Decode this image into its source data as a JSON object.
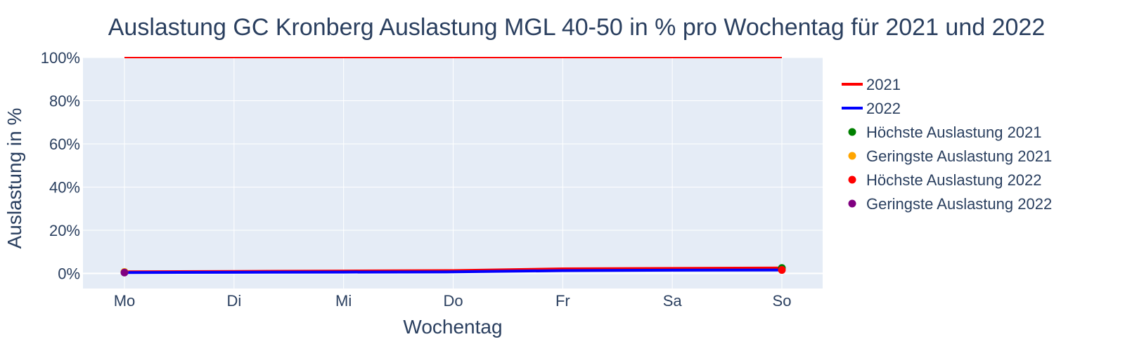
{
  "chart_data": {
    "type": "line",
    "title": "Auslastung GC Kronberg Auslastung MGL 40-50 in % pro Wochentag für 2021 und 2022",
    "xlabel": "Wochentag",
    "ylabel": "Auslastung in %",
    "categories": [
      "Mo",
      "Di",
      "Mi",
      "Do",
      "Fr",
      "Sa",
      "So"
    ],
    "ylim": [
      -7,
      100
    ],
    "yticks": [
      0,
      20,
      40,
      60,
      80,
      100
    ],
    "ytick_labels": [
      "0%",
      "20%",
      "40%",
      "60%",
      "80%",
      "100%"
    ],
    "grid": true,
    "legend_position": "right",
    "series": [
      {
        "name": "2021",
        "mode": "lines",
        "color": "#ff0000",
        "values": [
          0.7,
          0.9,
          1.1,
          1.3,
          2.1,
          2.3,
          2.5
        ]
      },
      {
        "name": "2022",
        "mode": "lines",
        "color": "#0000ff",
        "values": [
          0.4,
          0.5,
          0.6,
          0.7,
          1.3,
          1.5,
          1.6
        ]
      }
    ],
    "markers": [
      {
        "name": "Höchste Auslastung 2021",
        "color": "#008000",
        "x": "So",
        "y": 2.5
      },
      {
        "name": "Geringste Auslastung 2021",
        "color": "#ffa500",
        "x": "Mo",
        "y": 0.7
      },
      {
        "name": "Höchste Auslastung 2022",
        "color": "#ff0000",
        "x": "So",
        "y": 1.6
      },
      {
        "name": "Geringste Auslastung 2022",
        "color": "#800080",
        "x": "Mo",
        "y": 0.4
      }
    ],
    "reference_line": {
      "color": "#ff0000",
      "y": 100,
      "from": "Mo",
      "to": "So"
    },
    "colors": {
      "plot_bg": "#e5ecf6",
      "grid": "#ffffff",
      "text": "#2a3f5f"
    }
  }
}
